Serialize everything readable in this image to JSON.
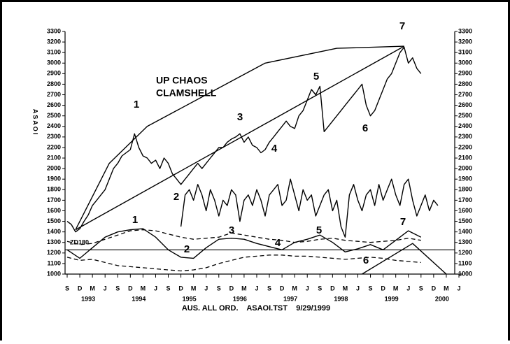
{
  "chart_data": {
    "type": "line",
    "ylabel": "ASAOI",
    "footer": "AUS. ALL ORD.    ASAOI.TST    9/29/1999",
    "ylim": [
      1000,
      3300
    ],
    "yticks": [
      1000,
      1100,
      1200,
      1300,
      1400,
      1500,
      1600,
      1700,
      1800,
      1900,
      2000,
      2100,
      2200,
      2300,
      2400,
      2500,
      2600,
      2700,
      2800,
      2900,
      3000,
      3100,
      3200,
      3300
    ],
    "xticks": [
      {
        "value": "1992-09",
        "label": "S"
      },
      {
        "value": "1992-12",
        "label": "D"
      },
      {
        "value": "1993-03",
        "label": "M"
      },
      {
        "value": "1993-06",
        "label": "J"
      },
      {
        "value": "1993-09",
        "label": "S"
      },
      {
        "value": "1993-12",
        "label": "D"
      },
      {
        "value": "1994-03",
        "label": "M"
      },
      {
        "value": "1994-06",
        "label": "J"
      },
      {
        "value": "1994-09",
        "label": "S"
      },
      {
        "value": "1994-12",
        "label": "D"
      },
      {
        "value": "1995-03",
        "label": "M"
      },
      {
        "value": "1995-06",
        "label": "J"
      },
      {
        "value": "1995-09",
        "label": "S"
      },
      {
        "value": "1995-12",
        "label": "D"
      },
      {
        "value": "1996-03",
        "label": "M"
      },
      {
        "value": "1996-06",
        "label": "J"
      },
      {
        "value": "1996-09",
        "label": "S"
      },
      {
        "value": "1996-12",
        "label": "D"
      },
      {
        "value": "1997-03",
        "label": "M"
      },
      {
        "value": "1997-06",
        "label": "J"
      },
      {
        "value": "1997-09",
        "label": "S"
      },
      {
        "value": "1997-12",
        "label": "D"
      },
      {
        "value": "1998-03",
        "label": "M"
      },
      {
        "value": "1998-06",
        "label": "J"
      },
      {
        "value": "1998-09",
        "label": "S"
      },
      {
        "value": "1998-12",
        "label": "D"
      },
      {
        "value": "1999-03",
        "label": "M"
      },
      {
        "value": "1999-06",
        "label": "J"
      },
      {
        "value": "1999-09",
        "label": "S"
      },
      {
        "value": "1999-12",
        "label": "D"
      },
      {
        "value": "2000-03",
        "label": "M"
      },
      {
        "value": "2000-06",
        "label": "J"
      }
    ],
    "year_labels": [
      1993,
      1994,
      1995,
      1996,
      1997,
      1998,
      1999,
      2000
    ],
    "hline": 1230,
    "annotations": [
      "UP CHAOS",
      "CLAMSHELL",
      "1",
      "2",
      "3",
      "4",
      "5",
      "6",
      "7",
      "1",
      "2",
      "3",
      "4",
      "5",
      "6",
      "7",
      "ZD180"
    ],
    "series": [
      {
        "color": "#000000",
        "dash": false,
        "x": [
          "1992-09",
          "1992-10",
          "1992-11",
          "1992-12",
          "1993-01",
          "1993-02",
          "1993-03",
          "1993-04",
          "1993-05",
          "1993-06",
          "1993-07",
          "1993-08",
          "1993-09",
          "1993-10",
          "1993-11",
          "1993-12",
          "1994-01",
          "1994-02",
          "1994-03",
          "1994-04",
          "1994-05",
          "1994-06",
          "1994-07",
          "1994-08",
          "1994-09",
          "1994-10",
          "1994-11",
          "1994-12",
          "1995-01",
          "1995-02",
          "1995-03",
          "1995-04",
          "1995-05",
          "1995-06",
          "1995-07",
          "1995-08",
          "1995-09",
          "1995-10",
          "1995-11",
          "1995-12",
          "1996-01",
          "1996-02",
          "1996-03",
          "1996-04",
          "1996-05",
          "1996-06",
          "1996-07",
          "1996-08",
          "1996-09",
          "1996-10",
          "1996-11",
          "1996-12",
          "1997-01",
          "1997-02",
          "1997-03",
          "1997-04",
          "1997-05",
          "1997-06",
          "1997-07",
          "1997-08",
          "1997-09",
          "1997-10",
          "1997-11",
          "1997-12",
          "1998-01",
          "1998-02",
          "1998-03",
          "1998-04",
          "1998-05",
          "1998-06",
          "1998-07",
          "1998-08",
          "1998-09",
          "1998-10",
          "1998-11",
          "1998-12",
          "1999-01",
          "1999-02",
          "1999-03",
          "1999-04",
          "1999-05",
          "1999-06",
          "1999-07",
          "1999-08",
          "1999-09"
        ],
        "values": [
          1500,
          1470,
          1400,
          1430,
          1500,
          1560,
          1650,
          1700,
          1750,
          1800,
          1900,
          2000,
          2050,
          2120,
          2150,
          2180,
          2330,
          2200,
          2120,
          2100,
          2050,
          2080,
          2000,
          2100,
          2050,
          1950,
          1900,
          1850,
          1900,
          1950,
          2000,
          2050,
          2000,
          2050,
          2100,
          2150,
          2200,
          2200,
          2250,
          2280,
          2300,
          2330,
          2250,
          2300,
          2220,
          2200,
          2150,
          2180,
          2250,
          2300,
          2350,
          2400,
          2450,
          2400,
          2380,
          2500,
          2550,
          2650,
          2750,
          2700,
          2780,
          2350,
          2400,
          2450,
          2500,
          2550,
          2600,
          2650,
          2700,
          2750,
          2800,
          2600,
          2500,
          2550,
          2650,
          2750,
          2850,
          2900,
          3000,
          3100,
          3150,
          3000,
          3050,
          2950,
          2900
        ]
      },
      {
        "color": "#000000",
        "dash": false,
        "x": [
          "1994-12",
          "1995-01",
          "1995-02",
          "1995-03",
          "1995-04",
          "1995-05",
          "1995-06",
          "1995-07",
          "1995-08",
          "1995-09",
          "1995-10",
          "1995-11",
          "1995-12",
          "1996-01",
          "1996-02",
          "1996-03",
          "1996-04",
          "1996-05",
          "1996-06",
          "1996-07",
          "1996-08",
          "1996-09",
          "1996-10",
          "1996-11",
          "1996-12",
          "1997-01",
          "1997-02",
          "1997-03",
          "1997-04",
          "1997-05",
          "1997-06",
          "1997-07",
          "1997-08",
          "1997-09",
          "1997-10",
          "1997-11",
          "1997-12",
          "1998-01",
          "1998-02",
          "1998-03",
          "1998-04",
          "1998-05",
          "1998-06",
          "1998-07",
          "1998-08",
          "1998-09",
          "1998-10",
          "1998-11",
          "1998-12",
          "1999-01",
          "1999-02",
          "1999-03",
          "1999-04",
          "1999-05",
          "1999-06",
          "1999-07",
          "1999-08",
          "1999-09",
          "1999-10",
          "1999-11",
          "1999-12",
          "2000-01"
        ],
        "values": [
          1450,
          1750,
          1800,
          1700,
          1850,
          1750,
          1600,
          1800,
          1700,
          1550,
          1700,
          1650,
          1800,
          1750,
          1500,
          1700,
          1750,
          1650,
          1800,
          1700,
          1550,
          1750,
          1800,
          1850,
          1650,
          1700,
          1900,
          1750,
          1600,
          1800,
          1700,
          1750,
          1550,
          1650,
          1750,
          1800,
          1600,
          1700,
          1450,
          1350,
          1750,
          1850,
          1700,
          1600,
          1750,
          1800,
          1650,
          1850,
          1700,
          1800,
          1900,
          1750,
          1650,
          1850,
          1900,
          1700,
          1550,
          1650,
          1750,
          1600,
          1700,
          1650
        ]
      },
      {
        "color": "#000000",
        "dash": false,
        "x": [
          "1992-09",
          "1992-12",
          "1993-03",
          "1993-06",
          "1993-09",
          "1993-12",
          "1994-03",
          "1994-06",
          "1994-09",
          "1994-12",
          "1995-03",
          "1995-06",
          "1995-09",
          "1995-12",
          "1996-03",
          "1996-06",
          "1996-09",
          "1996-12",
          "1997-03",
          "1997-06",
          "1997-09",
          "1997-12",
          "1998-03",
          "1998-06",
          "1998-09",
          "1998-12",
          "1999-03",
          "1999-06",
          "1999-09"
        ],
        "values": [
          1230,
          1150,
          1250,
          1350,
          1400,
          1420,
          1430,
          1350,
          1230,
          1160,
          1150,
          1250,
          1330,
          1340,
          1330,
          1290,
          1260,
          1230,
          1300,
          1330,
          1370,
          1300,
          1210,
          1240,
          1280,
          1230,
          1320,
          1410,
          1350
        ]
      },
      {
        "color": "#000000",
        "dash": true,
        "x": [
          "1992-09",
          "1992-12",
          "1993-03",
          "1993-06",
          "1993-09",
          "1993-12",
          "1994-03",
          "1994-06",
          "1994-09",
          "1994-12",
          "1995-03",
          "1995-06",
          "1995-09",
          "1995-12",
          "1996-03",
          "1996-06",
          "1996-09",
          "1996-12",
          "1997-03",
          "1997-06",
          "1997-09",
          "1997-12",
          "1998-03",
          "1998-06",
          "1998-09",
          "1998-12",
          "1999-03",
          "1999-06",
          "1999-09"
        ],
        "values": [
          1310,
          1280,
          1290,
          1330,
          1370,
          1410,
          1420,
          1410,
          1380,
          1350,
          1330,
          1340,
          1350,
          1390,
          1370,
          1350,
          1330,
          1320,
          1300,
          1310,
          1330,
          1340,
          1320,
          1310,
          1300,
          1310,
          1320,
          1340,
          1320
        ]
      },
      {
        "color": "#000000",
        "dash": true,
        "x": [
          "1992-09",
          "1992-12",
          "1993-03",
          "1993-06",
          "1993-09",
          "1993-12",
          "1994-03",
          "1994-06",
          "1994-09",
          "1994-12",
          "1995-03",
          "1995-06",
          "1995-09",
          "1995-12",
          "1996-03",
          "1996-06",
          "1996-09",
          "1996-12",
          "1997-03",
          "1997-06",
          "1997-09",
          "1997-12",
          "1998-03",
          "1998-06",
          "1998-09",
          "1998-12",
          "1999-03",
          "1999-06",
          "1999-09"
        ],
        "values": [
          1160,
          1130,
          1140,
          1110,
          1080,
          1070,
          1060,
          1050,
          1040,
          1030,
          1040,
          1060,
          1100,
          1130,
          1160,
          1170,
          1180,
          1180,
          1170,
          1170,
          1160,
          1150,
          1140,
          1150,
          1160,
          1150,
          1130,
          1120,
          1110
        ]
      },
      {
        "color": "#000000",
        "dash": false,
        "x": [
          "1992-11",
          "1993-07",
          "1994-04",
          "1995-06",
          "1996-08",
          "1998-01",
          "1999-05"
        ],
        "values": [
          1420,
          2050,
          2400,
          2700,
          3000,
          3140,
          3160
        ]
      },
      {
        "color": "#000000",
        "dash": false,
        "x": [
          "1992-11",
          "1999-05"
        ],
        "values": [
          1420,
          3160
        ]
      },
      {
        "color": "#000000",
        "dash": false,
        "x": [
          "1998-07",
          "1999-07",
          "2000-03"
        ],
        "values": [
          1000,
          1290,
          1000
        ]
      }
    ]
  }
}
